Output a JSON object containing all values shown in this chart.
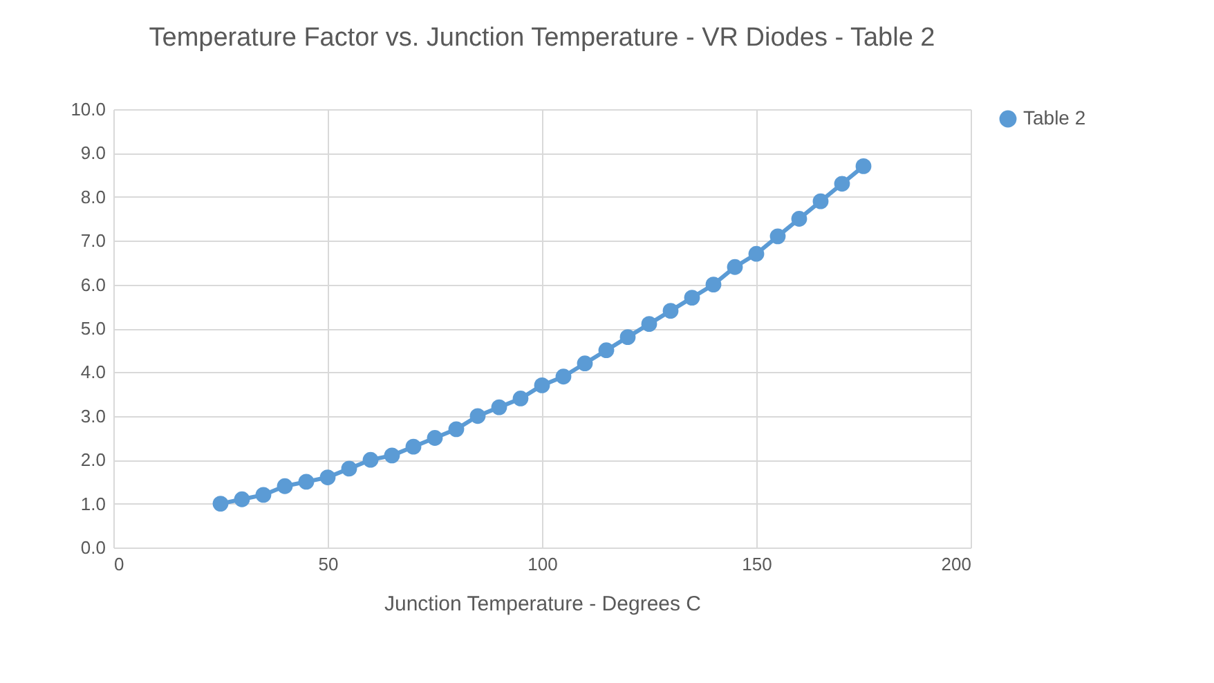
{
  "chart_data": {
    "type": "line",
    "title": "Temperature Factor vs. Junction Temperature - VR Diodes - Table 2",
    "xlabel": "Junction Temperature - Degrees C",
    "x": [
      25,
      30,
      35,
      40,
      45,
      50,
      55,
      60,
      65,
      70,
      75,
      80,
      85,
      90,
      95,
      100,
      105,
      110,
      115,
      120,
      125,
      130,
      135,
      140,
      145,
      150,
      155,
      160,
      165,
      170,
      175
    ],
    "series": [
      {
        "name": "Table 2",
        "color": "#5b9bd5",
        "values": [
          1.0,
          1.1,
          1.2,
          1.4,
          1.5,
          1.6,
          1.8,
          2.0,
          2.1,
          2.3,
          2.5,
          2.7,
          3.0,
          3.2,
          3.4,
          3.7,
          3.9,
          4.2,
          4.5,
          4.8,
          5.1,
          5.4,
          5.7,
          6.0,
          6.4,
          6.7,
          7.1,
          7.5,
          7.9,
          8.3,
          8.7
        ]
      }
    ],
    "xlim": [
      0,
      200
    ],
    "xticks": [
      0,
      50,
      100,
      150,
      200
    ],
    "ylim": [
      0,
      10
    ],
    "yticks": [
      {
        "value": 0,
        "label": "0.0"
      },
      {
        "value": 1,
        "label": "1.0"
      },
      {
        "value": 2,
        "label": "2.0"
      },
      {
        "value": 3,
        "label": "3.0"
      },
      {
        "value": 4,
        "label": "4.0"
      },
      {
        "value": 5,
        "label": "5.0"
      },
      {
        "value": 6,
        "label": "6.0"
      },
      {
        "value": 7,
        "label": "7.0"
      },
      {
        "value": 8,
        "label": "8.0"
      },
      {
        "value": 9,
        "label": "9.0"
      },
      {
        "value": 10,
        "label": "10.0"
      }
    ],
    "grid": true,
    "legend": "right",
    "marker": "circle",
    "line_style": "solid"
  }
}
